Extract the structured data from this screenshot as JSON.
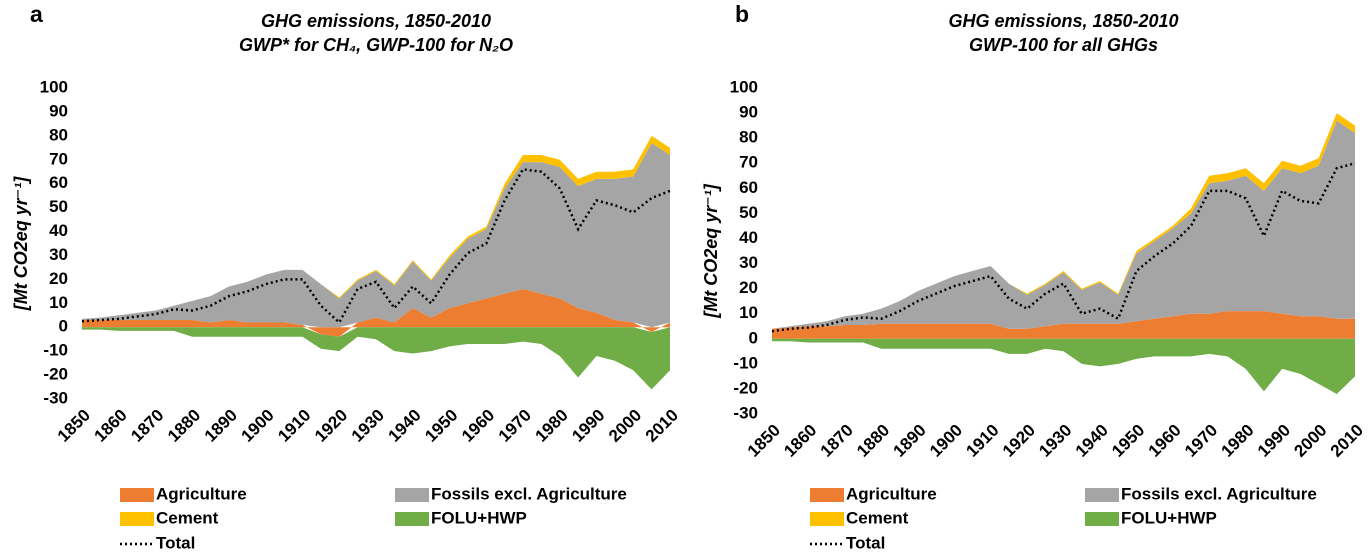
{
  "chart_data": [
    {
      "type": "area",
      "panel_label": "a",
      "title": "GHG emissions, 1850-2010",
      "subtitle": "GWP* for CH₄, GWP-100 for N₂O",
      "y_label": "[Mt CO2eq yr⁻¹]",
      "x": [
        1850,
        1855,
        1860,
        1865,
        1870,
        1875,
        1880,
        1885,
        1890,
        1895,
        1900,
        1905,
        1910,
        1915,
        1920,
        1925,
        1930,
        1935,
        1940,
        1945,
        1950,
        1955,
        1960,
        1965,
        1970,
        1975,
        1980,
        1985,
        1990,
        1995,
        2000,
        2005,
        2010
      ],
      "series": [
        {
          "name": "Agriculture",
          "color": "#ed7d31",
          "values": [
            3,
            3,
            3,
            3,
            3,
            3,
            3,
            2,
            3,
            2,
            2,
            2,
            1,
            -3,
            -4,
            2,
            4,
            2,
            8,
            4,
            8,
            10,
            12,
            14,
            16,
            14,
            12,
            8,
            6,
            3,
            2,
            -2,
            2
          ]
        },
        {
          "name": "Fossils excl. Agriculture",
          "color": "#a5a5a5",
          "values": [
            0.5,
            1,
            2,
            3,
            4,
            6,
            8,
            11,
            14,
            17,
            20,
            22,
            23,
            18,
            12,
            17.5,
            19.5,
            15.5,
            19.5,
            15.5,
            21,
            27,
            29,
            44,
            53,
            55,
            55,
            51,
            56,
            59,
            61,
            77,
            70
          ]
        },
        {
          "name": "Cement",
          "color": "#ffc000",
          "values": [
            0,
            0,
            0,
            0,
            0,
            0,
            0,
            0,
            0,
            0,
            0,
            0,
            0,
            0,
            0.5,
            0.5,
            0.5,
            0.5,
            0.5,
            0.5,
            1,
            1,
            1,
            2,
            3,
            3,
            3,
            3,
            3,
            3,
            3,
            3,
            3
          ]
        },
        {
          "name": "FOLU+HWP",
          "color": "#70ad47",
          "values": [
            -1,
            -1,
            -1.5,
            -1.5,
            -1.5,
            -1.5,
            -4,
            -4,
            -4,
            -4,
            -4,
            -4,
            -4,
            -6,
            -6,
            -4,
            -5,
            -10,
            -11,
            -10,
            -8,
            -7,
            -7,
            -7,
            -6,
            -7,
            -12,
            -21,
            -12,
            -14,
            -18,
            -24,
            -18
          ]
        },
        {
          "name": "Total",
          "color": "#000000",
          "line_style": "dotted",
          "values": [
            2.5,
            3,
            3.5,
            4.5,
            5.5,
            7.5,
            7,
            9,
            13,
            15,
            18,
            20,
            20,
            9,
            2,
            16,
            19,
            8,
            17,
            10,
            22,
            31,
            35,
            53,
            66,
            65,
            58,
            41,
            53,
            51,
            48,
            54,
            57
          ]
        }
      ],
      "xlim": [
        1850,
        2010
      ],
      "xticks": [
        1850,
        1860,
        1870,
        1880,
        1890,
        1900,
        1910,
        1920,
        1930,
        1940,
        1950,
        1960,
        1970,
        1980,
        1990,
        2000,
        2010
      ],
      "ylim": [
        -30,
        100
      ],
      "yticks": [
        -30,
        -20,
        -10,
        0,
        10,
        20,
        30,
        40,
        50,
        60,
        70,
        80,
        90,
        100
      ]
    },
    {
      "type": "area",
      "panel_label": "b",
      "title": "GHG emissions, 1850-2010",
      "subtitle": "GWP-100 for all GHGs",
      "y_label": "[Mt CO2eq yr⁻¹]",
      "x": [
        1850,
        1855,
        1860,
        1865,
        1870,
        1875,
        1880,
        1885,
        1890,
        1895,
        1900,
        1905,
        1910,
        1915,
        1920,
        1925,
        1930,
        1935,
        1940,
        1945,
        1950,
        1955,
        1960,
        1965,
        1970,
        1975,
        1980,
        1985,
        1990,
        1995,
        2000,
        2005,
        2010
      ],
      "series": [
        {
          "name": "Agriculture",
          "color": "#ed7d31",
          "values": [
            4,
            4.5,
            5,
            5,
            5.5,
            5.5,
            6,
            6,
            6,
            6,
            6,
            6,
            6,
            4,
            4,
            5,
            6,
            6,
            6,
            6,
            7,
            8,
            9,
            10,
            10,
            11,
            11,
            11,
            10,
            9,
            9,
            8,
            8
          ]
        },
        {
          "name": "Fossils excl. Agriculture",
          "color": "#a5a5a5",
          "values": [
            0,
            0.5,
            1,
            2,
            3.5,
            4.5,
            6,
            9,
            13,
            16,
            19,
            21,
            23,
            18,
            13.5,
            16.5,
            20.5,
            13.5,
            16.5,
            11.5,
            27,
            31,
            35,
            40,
            52,
            52,
            54,
            48,
            58,
            57,
            60,
            79,
            74
          ]
        },
        {
          "name": "Cement",
          "color": "#ffc000",
          "values": [
            0,
            0,
            0,
            0,
            0,
            0,
            0,
            0,
            0,
            0,
            0,
            0,
            0,
            0,
            0.5,
            0.5,
            0.5,
            0.5,
            0.5,
            0.5,
            1,
            1,
            1,
            2,
            3,
            3,
            3,
            3,
            3,
            3,
            3,
            3,
            3
          ]
        },
        {
          "name": "FOLU+HWP",
          "color": "#70ad47",
          "values": [
            -1,
            -1,
            -1.5,
            -1.5,
            -1.5,
            -1.5,
            -4,
            -4,
            -4,
            -4,
            -4,
            -4,
            -4,
            -6,
            -6,
            -4,
            -5,
            -10,
            -11,
            -10,
            -8,
            -7,
            -7,
            -7,
            -6,
            -7,
            -12,
            -21,
            -12,
            -14,
            -18,
            -22,
            -15
          ]
        },
        {
          "name": "Total",
          "color": "#000000",
          "line_style": "dotted",
          "values": [
            3,
            4,
            4.5,
            5.5,
            7.5,
            8.5,
            8,
            11,
            15,
            18,
            21,
            23,
            25,
            16,
            12,
            18,
            22,
            10,
            12,
            8,
            27,
            33,
            38,
            45,
            59,
            59,
            56,
            41,
            59,
            55,
            54,
            68,
            70
          ]
        }
      ],
      "xlim": [
        1850,
        2010
      ],
      "xticks": [
        1850,
        1860,
        1870,
        1880,
        1890,
        1900,
        1910,
        1920,
        1930,
        1940,
        1950,
        1960,
        1970,
        1980,
        1990,
        2000,
        2010
      ],
      "ylim": [
        -30,
        100
      ],
      "yticks": [
        -30,
        -20,
        -10,
        0,
        10,
        20,
        30,
        40,
        50,
        60,
        70,
        80,
        90,
        100
      ]
    }
  ]
}
